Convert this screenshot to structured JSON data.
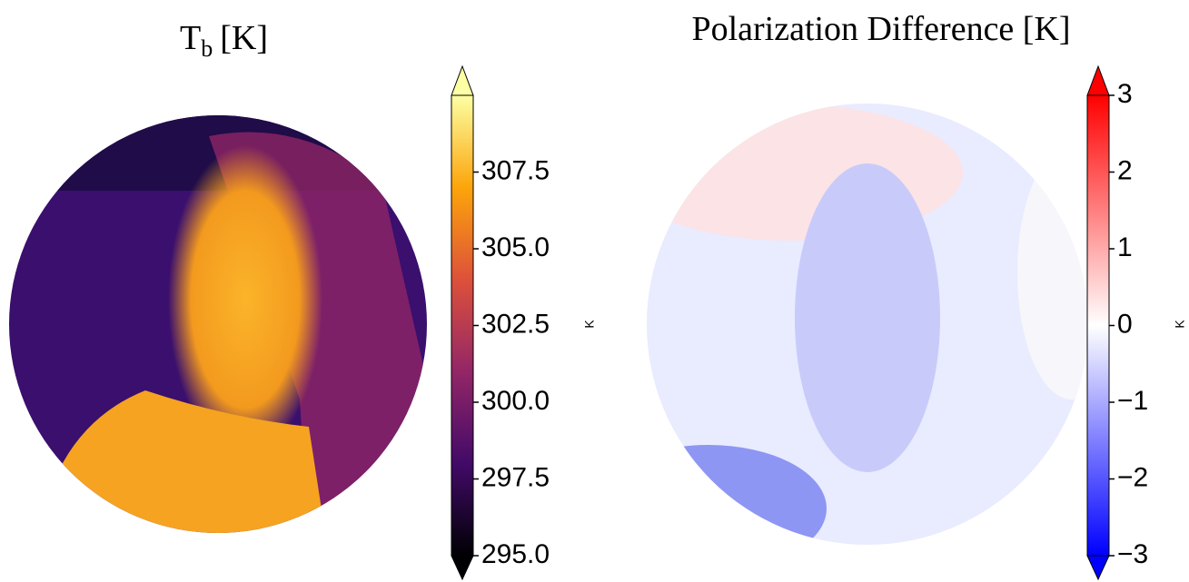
{
  "chart_data": [
    {
      "type": "image",
      "title": "T",
      "title_subscript": "b",
      "title_suffix": "[K]",
      "cmap": "inferno",
      "clim": [
        295,
        310
      ],
      "cticks": [
        {
          "value": 295,
          "label": "295.0"
        },
        {
          "value": 297.5,
          "label": "297.5"
        },
        {
          "value": 300,
          "label": "300.0"
        },
        {
          "value": 302.5,
          "label": "302.5"
        },
        {
          "value": 305,
          "label": "305.0"
        },
        {
          "value": 307.5,
          "label": "307.5"
        }
      ],
      "colorbar_label": "K"
    },
    {
      "type": "image",
      "title": "Polarization Difference  [K]",
      "cmap": "bwr",
      "clim": [
        -3,
        3
      ],
      "cticks": [
        {
          "value": -3,
          "label": "−3"
        },
        {
          "value": -2,
          "label": "−2"
        },
        {
          "value": -1,
          "label": "−1"
        },
        0,
        1,
        2,
        3
      ],
      "colorbar_label": "K"
    }
  ]
}
